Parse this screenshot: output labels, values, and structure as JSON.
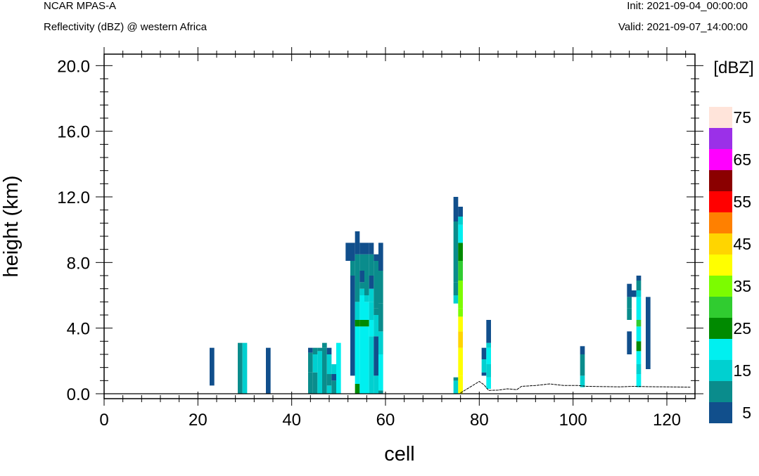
{
  "header": {
    "model": "NCAR MPAS-A",
    "subtitle": "Reflectivity (dBZ) @ western Africa",
    "init": "Init: 2021-09-04_00:00:00",
    "valid": "Valid: 2021-09-07_14:00:00"
  },
  "chart_data": {
    "type": "heatmap",
    "xlabel": "cell",
    "ylabel": "height (km)",
    "xlim": [
      0,
      126
    ],
    "ylim": [
      -0.3,
      20.7
    ],
    "xticks": [
      "0",
      "20",
      "40",
      "60",
      "80",
      "100",
      "120"
    ],
    "xtick_values": [
      0,
      20,
      40,
      60,
      80,
      100,
      120
    ],
    "yticks": [
      "0.0",
      "4.0",
      "8.0",
      "12.0",
      "16.0",
      "20.0"
    ],
    "ytick_values": [
      0,
      4,
      8,
      12,
      16,
      20
    ],
    "colorbar": {
      "label": "[dBZ]",
      "levels": [
        5,
        10,
        15,
        20,
        25,
        30,
        35,
        40,
        45,
        50,
        55,
        60,
        65,
        70,
        75
      ],
      "tick_labels": [
        "5",
        "15",
        "25",
        "35",
        "45",
        "55",
        "65",
        "75"
      ],
      "colors": [
        "#114f8c",
        "#0a8c8c",
        "#00d0d0",
        "#00f0f0",
        "#008a00",
        "#30cc30",
        "#7cfc00",
        "#ffff00",
        "#ffd500",
        "#ff8000",
        "#ff0000",
        "#8b0000",
        "#ff00ff",
        "#9b30e8",
        "#ffe4da"
      ]
    },
    "terrain": [
      [
        76,
        0.05
      ],
      [
        78,
        0.4
      ],
      [
        80,
        0.75
      ],
      [
        81,
        0.55
      ],
      [
        82,
        0.2
      ],
      [
        84,
        0.22
      ],
      [
        86,
        0.3
      ],
      [
        88,
        0.25
      ],
      [
        89,
        0.45
      ],
      [
        92,
        0.5
      ],
      [
        95,
        0.6
      ],
      [
        98,
        0.5
      ],
      [
        101,
        0.5
      ],
      [
        103,
        0.45
      ],
      [
        110,
        0.42
      ],
      [
        113,
        0.45
      ],
      [
        116,
        0.43
      ],
      [
        120,
        0.42
      ],
      [
        125,
        0.4
      ]
    ],
    "columns": [
      {
        "x": 23,
        "segs": [
          [
            0.5,
            2.8,
            5
          ]
        ]
      },
      {
        "x": 29,
        "segs": [
          [
            0.0,
            3.1,
            10
          ]
        ]
      },
      {
        "x": 30,
        "segs": [
          [
            0.0,
            3.1,
            15
          ]
        ]
      },
      {
        "x": 35,
        "segs": [
          [
            0.0,
            2.8,
            5
          ]
        ]
      },
      {
        "x": 44,
        "segs": [
          [
            0.0,
            1.3,
            10
          ],
          [
            1.3,
            2.5,
            10
          ],
          [
            2.5,
            2.8,
            5
          ]
        ]
      },
      {
        "x": 45,
        "segs": [
          [
            0.0,
            1.3,
            10
          ],
          [
            1.3,
            2.4,
            15
          ],
          [
            2.4,
            2.8,
            10
          ]
        ]
      },
      {
        "x": 46,
        "segs": [
          [
            0.0,
            2.6,
            15
          ],
          [
            2.6,
            2.8,
            10
          ]
        ]
      },
      {
        "x": 47,
        "segs": [
          [
            0.0,
            2.8,
            10
          ],
          [
            2.8,
            3.1,
            10
          ]
        ]
      },
      {
        "x": 48,
        "segs": [
          [
            0.0,
            0.5,
            15
          ],
          [
            0.5,
            1.2,
            10
          ],
          [
            1.2,
            2.4,
            15
          ],
          [
            2.4,
            2.8,
            5
          ]
        ]
      },
      {
        "x": 49,
        "segs": [
          [
            0.0,
            0.8,
            10
          ],
          [
            0.8,
            1.2,
            5
          ],
          [
            1.2,
            1.8,
            15
          ]
        ]
      },
      {
        "x": 50,
        "segs": [
          [
            0.0,
            3.1,
            20
          ]
        ]
      },
      {
        "x": 52,
        "segs": [
          [
            8.1,
            9.2,
            5
          ]
        ]
      },
      {
        "x": 53,
        "segs": [
          [
            1.1,
            7.2,
            5
          ],
          [
            7.2,
            8.1,
            10
          ],
          [
            8.1,
            9.2,
            5
          ]
        ]
      },
      {
        "x": 54,
        "segs": [
          [
            0.0,
            0.6,
            25
          ],
          [
            0.6,
            4.1,
            20
          ],
          [
            4.1,
            4.5,
            25
          ],
          [
            4.5,
            5.6,
            15
          ],
          [
            5.6,
            7.8,
            10
          ],
          [
            7.8,
            8.5,
            10
          ],
          [
            8.5,
            9.9,
            5
          ]
        ]
      },
      {
        "x": 55,
        "segs": [
          [
            0.0,
            4.1,
            20
          ],
          [
            4.1,
            4.5,
            25
          ],
          [
            4.5,
            6.0,
            20
          ],
          [
            6.0,
            6.4,
            15
          ],
          [
            6.4,
            6.8,
            10
          ],
          [
            6.8,
            7.5,
            5
          ],
          [
            7.5,
            8.5,
            10
          ],
          [
            8.5,
            9.2,
            5
          ]
        ]
      },
      {
        "x": 56,
        "segs": [
          [
            0.0,
            4.1,
            20
          ],
          [
            4.1,
            4.5,
            25
          ],
          [
            4.5,
            5.6,
            20
          ],
          [
            5.6,
            6.0,
            15
          ],
          [
            6.0,
            7.8,
            10
          ],
          [
            7.8,
            8.5,
            10
          ],
          [
            8.5,
            9.2,
            5
          ]
        ]
      },
      {
        "x": 57,
        "segs": [
          [
            0.0,
            3.5,
            15
          ],
          [
            3.5,
            4.5,
            20
          ],
          [
            4.5,
            5.6,
            15
          ],
          [
            5.6,
            6.4,
            15
          ],
          [
            6.4,
            7.2,
            5
          ],
          [
            7.2,
            8.5,
            10
          ],
          [
            8.5,
            9.2,
            5
          ]
        ]
      },
      {
        "x": 58,
        "segs": [
          [
            0.0,
            1.1,
            15
          ],
          [
            1.1,
            3.5,
            5
          ],
          [
            3.5,
            4.8,
            15
          ],
          [
            4.8,
            5.2,
            10
          ],
          [
            5.2,
            8.1,
            10
          ],
          [
            8.1,
            8.5,
            5
          ]
        ]
      },
      {
        "x": 59,
        "segs": [
          [
            0.0,
            0.2,
            10
          ],
          [
            0.2,
            2.4,
            20
          ],
          [
            2.4,
            3.8,
            15
          ],
          [
            3.8,
            4.5,
            10
          ],
          [
            4.5,
            5.5,
            10
          ],
          [
            5.5,
            7.5,
            10
          ],
          [
            7.5,
            9.2,
            5
          ]
        ]
      },
      {
        "x": 75,
        "segs": [
          [
            0.0,
            0.8,
            15
          ],
          [
            0.8,
            1.0,
            10
          ],
          [
            5.5,
            6.0,
            15
          ],
          [
            6.0,
            6.8,
            10
          ],
          [
            6.8,
            10.5,
            10
          ],
          [
            10.5,
            12.0,
            5
          ]
        ]
      },
      {
        "x": 76,
        "segs": [
          [
            0.0,
            1.1,
            40
          ],
          [
            1.1,
            1.5,
            40
          ],
          [
            1.5,
            2.8,
            40
          ],
          [
            2.8,
            3.8,
            45
          ],
          [
            3.8,
            4.7,
            40
          ],
          [
            4.7,
            5.2,
            35
          ],
          [
            5.2,
            6.9,
            35
          ],
          [
            6.9,
            8.1,
            30
          ],
          [
            8.1,
            9.2,
            25
          ],
          [
            9.2,
            10.3,
            20
          ],
          [
            10.3,
            10.8,
            15
          ],
          [
            10.8,
            11.4,
            5
          ]
        ]
      },
      {
        "x": 81,
        "segs": [
          [
            1.1,
            1.3,
            5
          ],
          [
            1.3,
            2.1,
            15
          ],
          [
            2.1,
            2.8,
            5
          ]
        ]
      },
      {
        "x": 82,
        "segs": [
          [
            0.3,
            1.0,
            20
          ],
          [
            1.0,
            1.8,
            15
          ],
          [
            1.8,
            2.8,
            20
          ],
          [
            2.8,
            3.1,
            15
          ],
          [
            3.1,
            4.5,
            5
          ]
        ]
      },
      {
        "x": 102,
        "segs": [
          [
            0.4,
            1.1,
            15
          ],
          [
            1.1,
            1.8,
            10
          ],
          [
            1.8,
            2.4,
            10
          ],
          [
            2.4,
            2.9,
            5
          ]
        ]
      },
      {
        "x": 112,
        "segs": [
          [
            2.4,
            3.8,
            5
          ],
          [
            4.5,
            5.2,
            10
          ],
          [
            5.2,
            5.9,
            10
          ],
          [
            5.9,
            6.7,
            5
          ]
        ]
      },
      {
        "x": 113,
        "segs": [
          [
            5.9,
            6.3,
            5
          ]
        ]
      },
      {
        "x": 114,
        "segs": [
          [
            0.4,
            1.2,
            20
          ],
          [
            1.2,
            1.8,
            15
          ],
          [
            1.8,
            2.6,
            20
          ],
          [
            2.6,
            3.2,
            25
          ],
          [
            3.2,
            4.1,
            20
          ],
          [
            4.1,
            4.5,
            30
          ],
          [
            4.5,
            5.9,
            20
          ],
          [
            5.9,
            6.3,
            15
          ],
          [
            6.3,
            6.9,
            10
          ],
          [
            6.9,
            7.2,
            5
          ]
        ]
      },
      {
        "x": 116,
        "segs": [
          [
            1.5,
            5.9,
            5
          ]
        ]
      }
    ]
  }
}
